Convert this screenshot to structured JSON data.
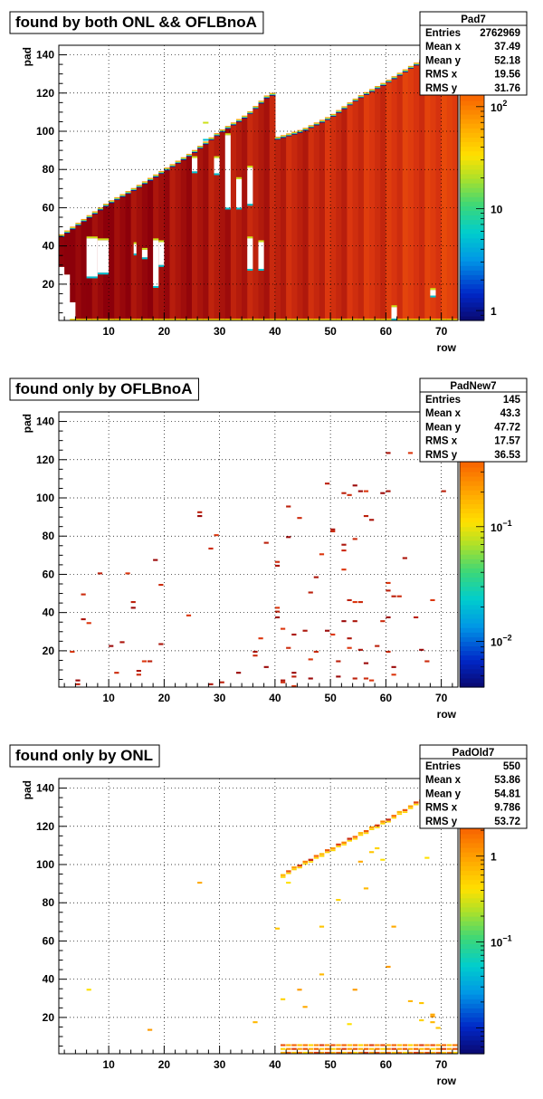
{
  "chart_data": [
    {
      "type": "heatmap",
      "title": "found by both ONL && OFLBnoA",
      "xlabel": "row",
      "ylabel": "pad",
      "xlim": [
        1,
        73
      ],
      "ylim": [
        1,
        145
      ],
      "x_ticks": [
        10,
        20,
        30,
        40,
        50,
        60,
        70
      ],
      "y_ticks": [
        20,
        40,
        60,
        80,
        100,
        120,
        140
      ],
      "grid": true,
      "colorbar": {
        "scale": "log",
        "min": 0.8,
        "max": 400,
        "ticks": [
          {
            "value": 1,
            "label": "1",
            "exp": ""
          },
          {
            "value": 10,
            "label": "10",
            "exp": ""
          },
          {
            "value": 100,
            "label": "10",
            "exp": "2"
          }
        ]
      },
      "stats": {
        "name": "Pad7",
        "rows": [
          {
            "label": "Entries",
            "value": "2762969"
          },
          {
            "label": "Mean x",
            "value": "37.49"
          },
          {
            "label": "Mean y",
            "value": "52.18"
          },
          {
            "label": "RMS x",
            "value": "19.56"
          },
          {
            "label": "RMS y",
            "value": "31.76"
          }
        ]
      },
      "fill": {
        "upper_edge": [
          [
            1,
            44
          ],
          [
            5,
            52
          ],
          [
            10,
            62
          ],
          [
            15,
            70
          ],
          [
            20,
            79
          ],
          [
            25,
            88
          ],
          [
            30,
            99
          ],
          [
            35,
            108
          ],
          [
            39,
            119
          ],
          [
            40,
            119
          ],
          [
            40.5,
            96
          ],
          [
            45,
            100
          ],
          [
            50,
            107
          ],
          [
            55,
            117
          ],
          [
            60,
            125
          ],
          [
            65,
            134
          ],
          [
            70,
            142
          ],
          [
            73,
            144
          ]
        ],
        "lower_edge": [
          [
            1,
            28
          ],
          [
            2,
            30
          ],
          [
            3,
            20
          ],
          [
            4,
            1
          ],
          [
            73,
            1
          ]
        ],
        "gaps": [
          [
            [
              6,
              8
            ],
            [
              24,
              44
            ]
          ],
          [
            [
              8,
              10
            ],
            [
              26,
              43
            ]
          ],
          [
            [
              14.5,
              15
            ],
            [
              36,
              41
            ]
          ],
          [
            [
              16,
              17
            ],
            [
              34,
              38
            ]
          ],
          [
            [
              18,
              19
            ],
            [
              19,
              43
            ]
          ],
          [
            [
              19,
              20
            ],
            [
              30,
              42
            ]
          ],
          [
            [
              25,
              26
            ],
            [
              79,
              86
            ]
          ],
          [
            [
              29,
              30
            ],
            [
              78,
              86
            ]
          ],
          [
            [
              31,
              32
            ],
            [
              60,
              98
            ]
          ],
          [
            [
              33,
              34
            ],
            [
              60,
              75
            ]
          ],
          [
            [
              35,
              36
            ],
            [
              62,
              81
            ]
          ],
          [
            [
              27,
              28
            ],
            [
              96,
              104
            ]
          ],
          [
            [
              35,
              36
            ],
            [
              28,
              44
            ]
          ],
          [
            [
              37,
              38
            ],
            [
              28,
              42
            ]
          ],
          [
            [
              61,
              62
            ],
            [
              2,
              8
            ]
          ],
          [
            [
              68,
              69
            ],
            [
              14,
              17
            ]
          ]
        ]
      },
      "dots": []
    },
    {
      "type": "heatmap",
      "title": "found only by OFLBnoA",
      "xlabel": "row",
      "ylabel": "pad",
      "xlim": [
        1,
        73
      ],
      "ylim": [
        1,
        145
      ],
      "x_ticks": [
        10,
        20,
        30,
        40,
        50,
        60,
        70
      ],
      "y_ticks": [
        20,
        40,
        60,
        80,
        100,
        120,
        140
      ],
      "grid": true,
      "colorbar": {
        "scale": "log",
        "min": 0.004,
        "max": 1.0,
        "ticks": [
          {
            "value": 0.01,
            "label": "10",
            "exp": "−2"
          },
          {
            "value": 0.1,
            "label": "10",
            "exp": "−1"
          }
        ]
      },
      "stats": {
        "name": "PadNew7",
        "rows": [
          {
            "label": "Entries",
            "value": "145"
          },
          {
            "label": "Mean x",
            "value": "43.3"
          },
          {
            "label": "Mean y",
            "value": "47.72"
          },
          {
            "label": "RMS x",
            "value": "17.57"
          },
          {
            "label": "RMS y",
            "value": "36.53"
          }
        ]
      },
      "dots": [
        [
          3,
          20
        ],
        [
          4,
          3
        ],
        [
          4,
          5
        ],
        [
          5,
          50
        ],
        [
          5,
          37
        ],
        [
          6,
          35
        ],
        [
          8,
          61
        ],
        [
          10,
          23
        ],
        [
          11,
          9
        ],
        [
          12,
          25
        ],
        [
          13,
          61
        ],
        [
          14,
          46
        ],
        [
          14,
          43
        ],
        [
          15,
          8
        ],
        [
          15,
          10
        ],
        [
          16,
          15
        ],
        [
          17,
          15
        ],
        [
          18,
          68
        ],
        [
          19,
          55
        ],
        [
          19,
          24
        ],
        [
          24,
          39
        ],
        [
          26,
          93
        ],
        [
          26,
          91
        ],
        [
          28,
          74
        ],
        [
          28,
          3
        ],
        [
          29,
          81
        ],
        [
          30,
          4
        ],
        [
          33,
          9
        ],
        [
          36,
          18
        ],
        [
          36,
          20
        ],
        [
          37,
          27
        ],
        [
          38,
          77
        ],
        [
          38,
          12
        ],
        [
          40,
          67
        ],
        [
          40,
          65
        ],
        [
          40,
          43
        ],
        [
          40,
          41
        ],
        [
          40,
          38
        ],
        [
          41,
          4
        ],
        [
          41,
          5
        ],
        [
          41,
          32
        ],
        [
          42,
          96
        ],
        [
          42,
          80
        ],
        [
          42,
          22
        ],
        [
          43,
          29
        ],
        [
          43,
          2
        ],
        [
          43,
          7
        ],
        [
          43,
          9
        ],
        [
          44,
          90
        ],
        [
          45,
          31
        ],
        [
          46,
          16
        ],
        [
          46,
          51
        ],
        [
          46,
          6
        ],
        [
          47,
          20
        ],
        [
          47,
          59
        ],
        [
          48,
          71
        ],
        [
          49,
          108
        ],
        [
          49,
          31
        ],
        [
          50,
          83
        ],
        [
          50,
          84
        ],
        [
          50,
          29
        ],
        [
          51,
          15
        ],
        [
          51,
          7
        ],
        [
          52,
          73
        ],
        [
          52,
          76
        ],
        [
          52,
          63
        ],
        [
          52,
          103
        ],
        [
          52,
          36
        ],
        [
          53,
          102
        ],
        [
          53,
          27
        ],
        [
          53,
          22
        ],
        [
          53,
          47
        ],
        [
          54,
          107
        ],
        [
          54,
          79
        ],
        [
          54,
          36
        ],
        [
          54,
          46
        ],
        [
          54,
          6
        ],
        [
          55,
          104
        ],
        [
          55,
          46
        ],
        [
          55,
          21
        ],
        [
          56,
          104
        ],
        [
          56,
          91
        ],
        [
          56,
          14
        ],
        [
          56,
          6
        ],
        [
          57,
          89
        ],
        [
          57,
          5
        ],
        [
          58,
          23
        ],
        [
          59,
          103
        ],
        [
          59,
          36
        ],
        [
          60,
          124
        ],
        [
          60,
          56
        ],
        [
          60,
          52
        ],
        [
          60,
          38
        ],
        [
          60,
          20
        ],
        [
          60,
          104
        ],
        [
          61,
          8
        ],
        [
          61,
          49
        ],
        [
          61,
          12
        ],
        [
          62,
          49
        ],
        [
          63,
          69
        ],
        [
          64,
          124
        ],
        [
          65,
          38
        ],
        [
          66,
          21
        ],
        [
          67,
          15
        ],
        [
          68,
          122
        ],
        [
          68,
          47
        ],
        [
          70,
          104
        ]
      ]
    },
    {
      "type": "heatmap",
      "title": "found only by ONL",
      "xlabel": "row",
      "ylabel": "pad",
      "xlim": [
        1,
        73
      ],
      "ylim": [
        1,
        145
      ],
      "x_ticks": [
        10,
        20,
        30,
        40,
        50,
        60,
        70
      ],
      "y_ticks": [
        20,
        40,
        60,
        80,
        100,
        120,
        140
      ],
      "grid": true,
      "colorbar": {
        "scale": "log",
        "min": 0.005,
        "max": 8,
        "ticks": [
          {
            "value": 0.1,
            "label": "10",
            "exp": "−1"
          },
          {
            "value": 1,
            "label": "1",
            "exp": ""
          }
        ]
      },
      "stats": {
        "name": "PadOld7",
        "rows": [
          {
            "label": "Entries",
            "value": "550"
          },
          {
            "label": "Mean x",
            "value": "53.86"
          },
          {
            "label": "Mean y",
            "value": "54.81"
          },
          {
            "label": "RMS x",
            "value": "9.786"
          },
          {
            "label": "RMS y",
            "value": "53.72"
          }
        ]
      },
      "diagonal": [
        [
          41,
          95
        ],
        [
          42,
          97
        ],
        [
          43,
          99
        ],
        [
          44,
          100
        ],
        [
          45,
          102
        ],
        [
          46,
          103
        ],
        [
          47,
          105
        ],
        [
          48,
          106
        ],
        [
          49,
          108
        ],
        [
          50,
          109
        ],
        [
          51,
          111
        ],
        [
          52,
          112
        ],
        [
          53,
          114
        ],
        [
          54,
          115
        ],
        [
          55,
          117
        ],
        [
          56,
          118
        ],
        [
          57,
          120
        ],
        [
          58,
          121
        ],
        [
          59,
          123
        ],
        [
          60,
          124
        ],
        [
          61,
          126
        ],
        [
          62,
          128
        ],
        [
          63,
          129
        ],
        [
          64,
          131
        ],
        [
          65,
          133
        ],
        [
          66,
          134
        ],
        [
          67,
          136
        ],
        [
          68,
          138
        ],
        [
          69,
          140
        ],
        [
          70,
          142
        ],
        [
          71,
          143
        ]
      ],
      "bottom_band": [
        41,
        73
      ],
      "dots": [
        [
          6,
          35
        ],
        [
          17,
          14
        ],
        [
          26,
          91
        ],
        [
          36,
          18
        ],
        [
          40,
          67
        ],
        [
          41,
          30
        ],
        [
          42,
          91
        ],
        [
          44,
          35
        ],
        [
          45,
          26
        ],
        [
          48,
          43
        ],
        [
          48,
          68
        ],
        [
          51,
          82
        ],
        [
          53,
          17
        ],
        [
          54,
          35
        ],
        [
          55,
          102
        ],
        [
          56,
          88
        ],
        [
          57,
          107
        ],
        [
          58,
          109
        ],
        [
          59,
          103
        ],
        [
          60,
          47
        ],
        [
          61,
          68
        ],
        [
          64,
          29
        ],
        [
          66,
          28
        ],
        [
          66,
          19
        ],
        [
          67,
          104
        ],
        [
          68,
          21
        ],
        [
          68,
          22
        ],
        [
          68,
          18
        ],
        [
          69,
          15
        ]
      ]
    }
  ]
}
